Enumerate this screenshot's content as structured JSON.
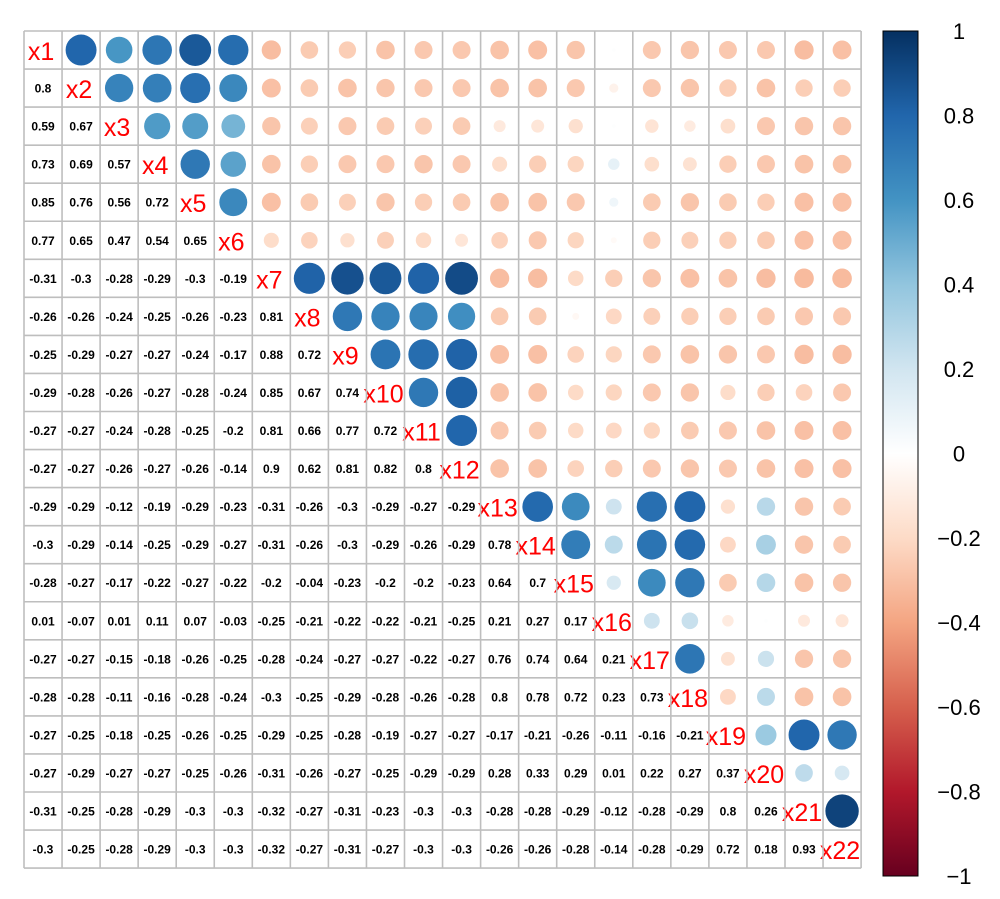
{
  "chart_data": {
    "type": "heatmap",
    "style": "mixed-correlation-plot: circles upper triangle, numbers lower triangle, variable names on diagonal",
    "variables": [
      "x1",
      "x2",
      "x3",
      "x4",
      "x5",
      "x6",
      "x7",
      "x8",
      "x9",
      "x10",
      "x11",
      "x12",
      "x13",
      "x14",
      "x15",
      "x16",
      "x17",
      "x18",
      "x19",
      "x20",
      "x21",
      "x22"
    ],
    "lower_labels": [
      [],
      [
        "0.8"
      ],
      [
        "0.59",
        "0.67"
      ],
      [
        "0.73",
        "0.69",
        "0.57"
      ],
      [
        "0.85",
        "0.76",
        "0.56",
        "0.72"
      ],
      [
        "0.77",
        "0.65",
        "0.47",
        "0.54",
        "0.65"
      ],
      [
        "-0.31",
        "-0.3",
        "-0.28",
        "-0.29",
        "-0.3",
        "-0.19"
      ],
      [
        "-0.26",
        "-0.26",
        "-0.24",
        "-0.25",
        "-0.26",
        "-0.23",
        "0.81"
      ],
      [
        "-0.25",
        "-0.29",
        "-0.27",
        "-0.27",
        "-0.24",
        "-0.17",
        "0.88",
        "0.72"
      ],
      [
        "-0.29",
        "-0.28",
        "-0.26",
        "-0.27",
        "-0.28",
        "-0.24",
        "0.85",
        "0.67",
        "0.74"
      ],
      [
        "-0.27",
        "-0.27",
        "-0.24",
        "-0.28",
        "-0.25",
        "-0.2",
        "0.81",
        "0.66",
        "0.77",
        "0.72"
      ],
      [
        "-0.27",
        "-0.27",
        "-0.26",
        "-0.27",
        "-0.26",
        "-0.14",
        "0.9",
        "0.62",
        "0.81",
        "0.82",
        "0.8"
      ],
      [
        "-0.29",
        "-0.29",
        "-0.12",
        "-0.19",
        "-0.29",
        "-0.23",
        "-0.31",
        "-0.26",
        "-0.3",
        "-0.29",
        "-0.27",
        "-0.29"
      ],
      [
        "-0.3",
        "-0.29",
        "-0.14",
        "-0.25",
        "-0.29",
        "-0.27",
        "-0.31",
        "-0.26",
        "-0.3",
        "-0.29",
        "-0.26",
        "-0.29",
        "0.78"
      ],
      [
        "-0.28",
        "-0.27",
        "-0.17",
        "-0.22",
        "-0.27",
        "-0.22",
        "-0.2",
        "-0.04",
        "-0.23",
        "-0.2",
        "-0.2",
        "-0.23",
        "0.64",
        "0.7"
      ],
      [
        "0.01",
        "-0.07",
        "0.01",
        "0.11",
        "0.07",
        "-0.03",
        "-0.25",
        "-0.21",
        "-0.22",
        "-0.22",
        "-0.21",
        "-0.25",
        "0.21",
        "0.27",
        "0.17"
      ],
      [
        "-0.27",
        "-0.27",
        "-0.15",
        "-0.18",
        "-0.26",
        "-0.25",
        "-0.28",
        "-0.24",
        "-0.27",
        "-0.27",
        "-0.22",
        "-0.27",
        "0.76",
        "0.74",
        "0.64",
        "0.21"
      ],
      [
        "-0.28",
        "-0.28",
        "-0.11",
        "-0.16",
        "-0.28",
        "-0.24",
        "-0.3",
        "-0.25",
        "-0.29",
        "-0.28",
        "-0.26",
        "-0.28",
        "0.8",
        "0.78",
        "0.72",
        "0.23",
        "0.73"
      ],
      [
        "-0.27",
        "-0.25",
        "-0.18",
        "-0.25",
        "-0.26",
        "-0.25",
        "-0.29",
        "-0.25",
        "-0.28",
        "-0.19",
        "-0.27",
        "-0.27",
        "-0.17",
        "-0.21",
        "-0.26",
        "-0.11",
        "-0.16",
        "-0.21"
      ],
      [
        "-0.27",
        "-0.29",
        "-0.27",
        "-0.27",
        "-0.25",
        "-0.26",
        "-0.31",
        "-0.26",
        "-0.27",
        "-0.25",
        "-0.29",
        "-0.29",
        "0.28",
        "0.33",
        "0.29",
        "0.01",
        "0.22",
        "0.27",
        "0.37"
      ],
      [
        "-0.31",
        "-0.25",
        "-0.28",
        "-0.29",
        "-0.3",
        "-0.3",
        "-0.32",
        "-0.27",
        "-0.31",
        "-0.23",
        "-0.3",
        "-0.3",
        "-0.28",
        "-0.28",
        "-0.29",
        "-0.12",
        "-0.28",
        "-0.29",
        "0.8",
        "0.26"
      ],
      [
        "-0.3",
        "-0.25",
        "-0.28",
        "-0.29",
        "-0.3",
        "-0.3",
        "-0.32",
        "-0.27",
        "-0.31",
        "-0.27",
        "-0.3",
        "-0.3",
        "-0.26",
        "-0.26",
        "-0.28",
        "-0.14",
        "-0.28",
        "-0.29",
        "0.72",
        "0.18",
        "0.93"
      ]
    ],
    "colorbar": {
      "min": -1,
      "max": 1,
      "ticks": [
        1,
        0.8,
        0.6,
        0.4,
        0.2,
        0,
        -0.2,
        -0.4,
        -0.6,
        -0.8,
        -1
      ],
      "tick_labels": [
        "1",
        "0.8",
        "0.6",
        "0.4",
        "0.2",
        "0",
        "−0.2",
        "−0.4",
        "−0.6",
        "−0.8",
        "−1"
      ],
      "colors": [
        "#67001F",
        "#B2182B",
        "#D6604D",
        "#F4A582",
        "#FDDBC7",
        "#FFFFFF",
        "#D1E5F0",
        "#92C5DE",
        "#4393C3",
        "#2166AC",
        "#053061"
      ]
    },
    "diag_label_color": "#FF0000",
    "grid_color": "#BEBEBE"
  }
}
